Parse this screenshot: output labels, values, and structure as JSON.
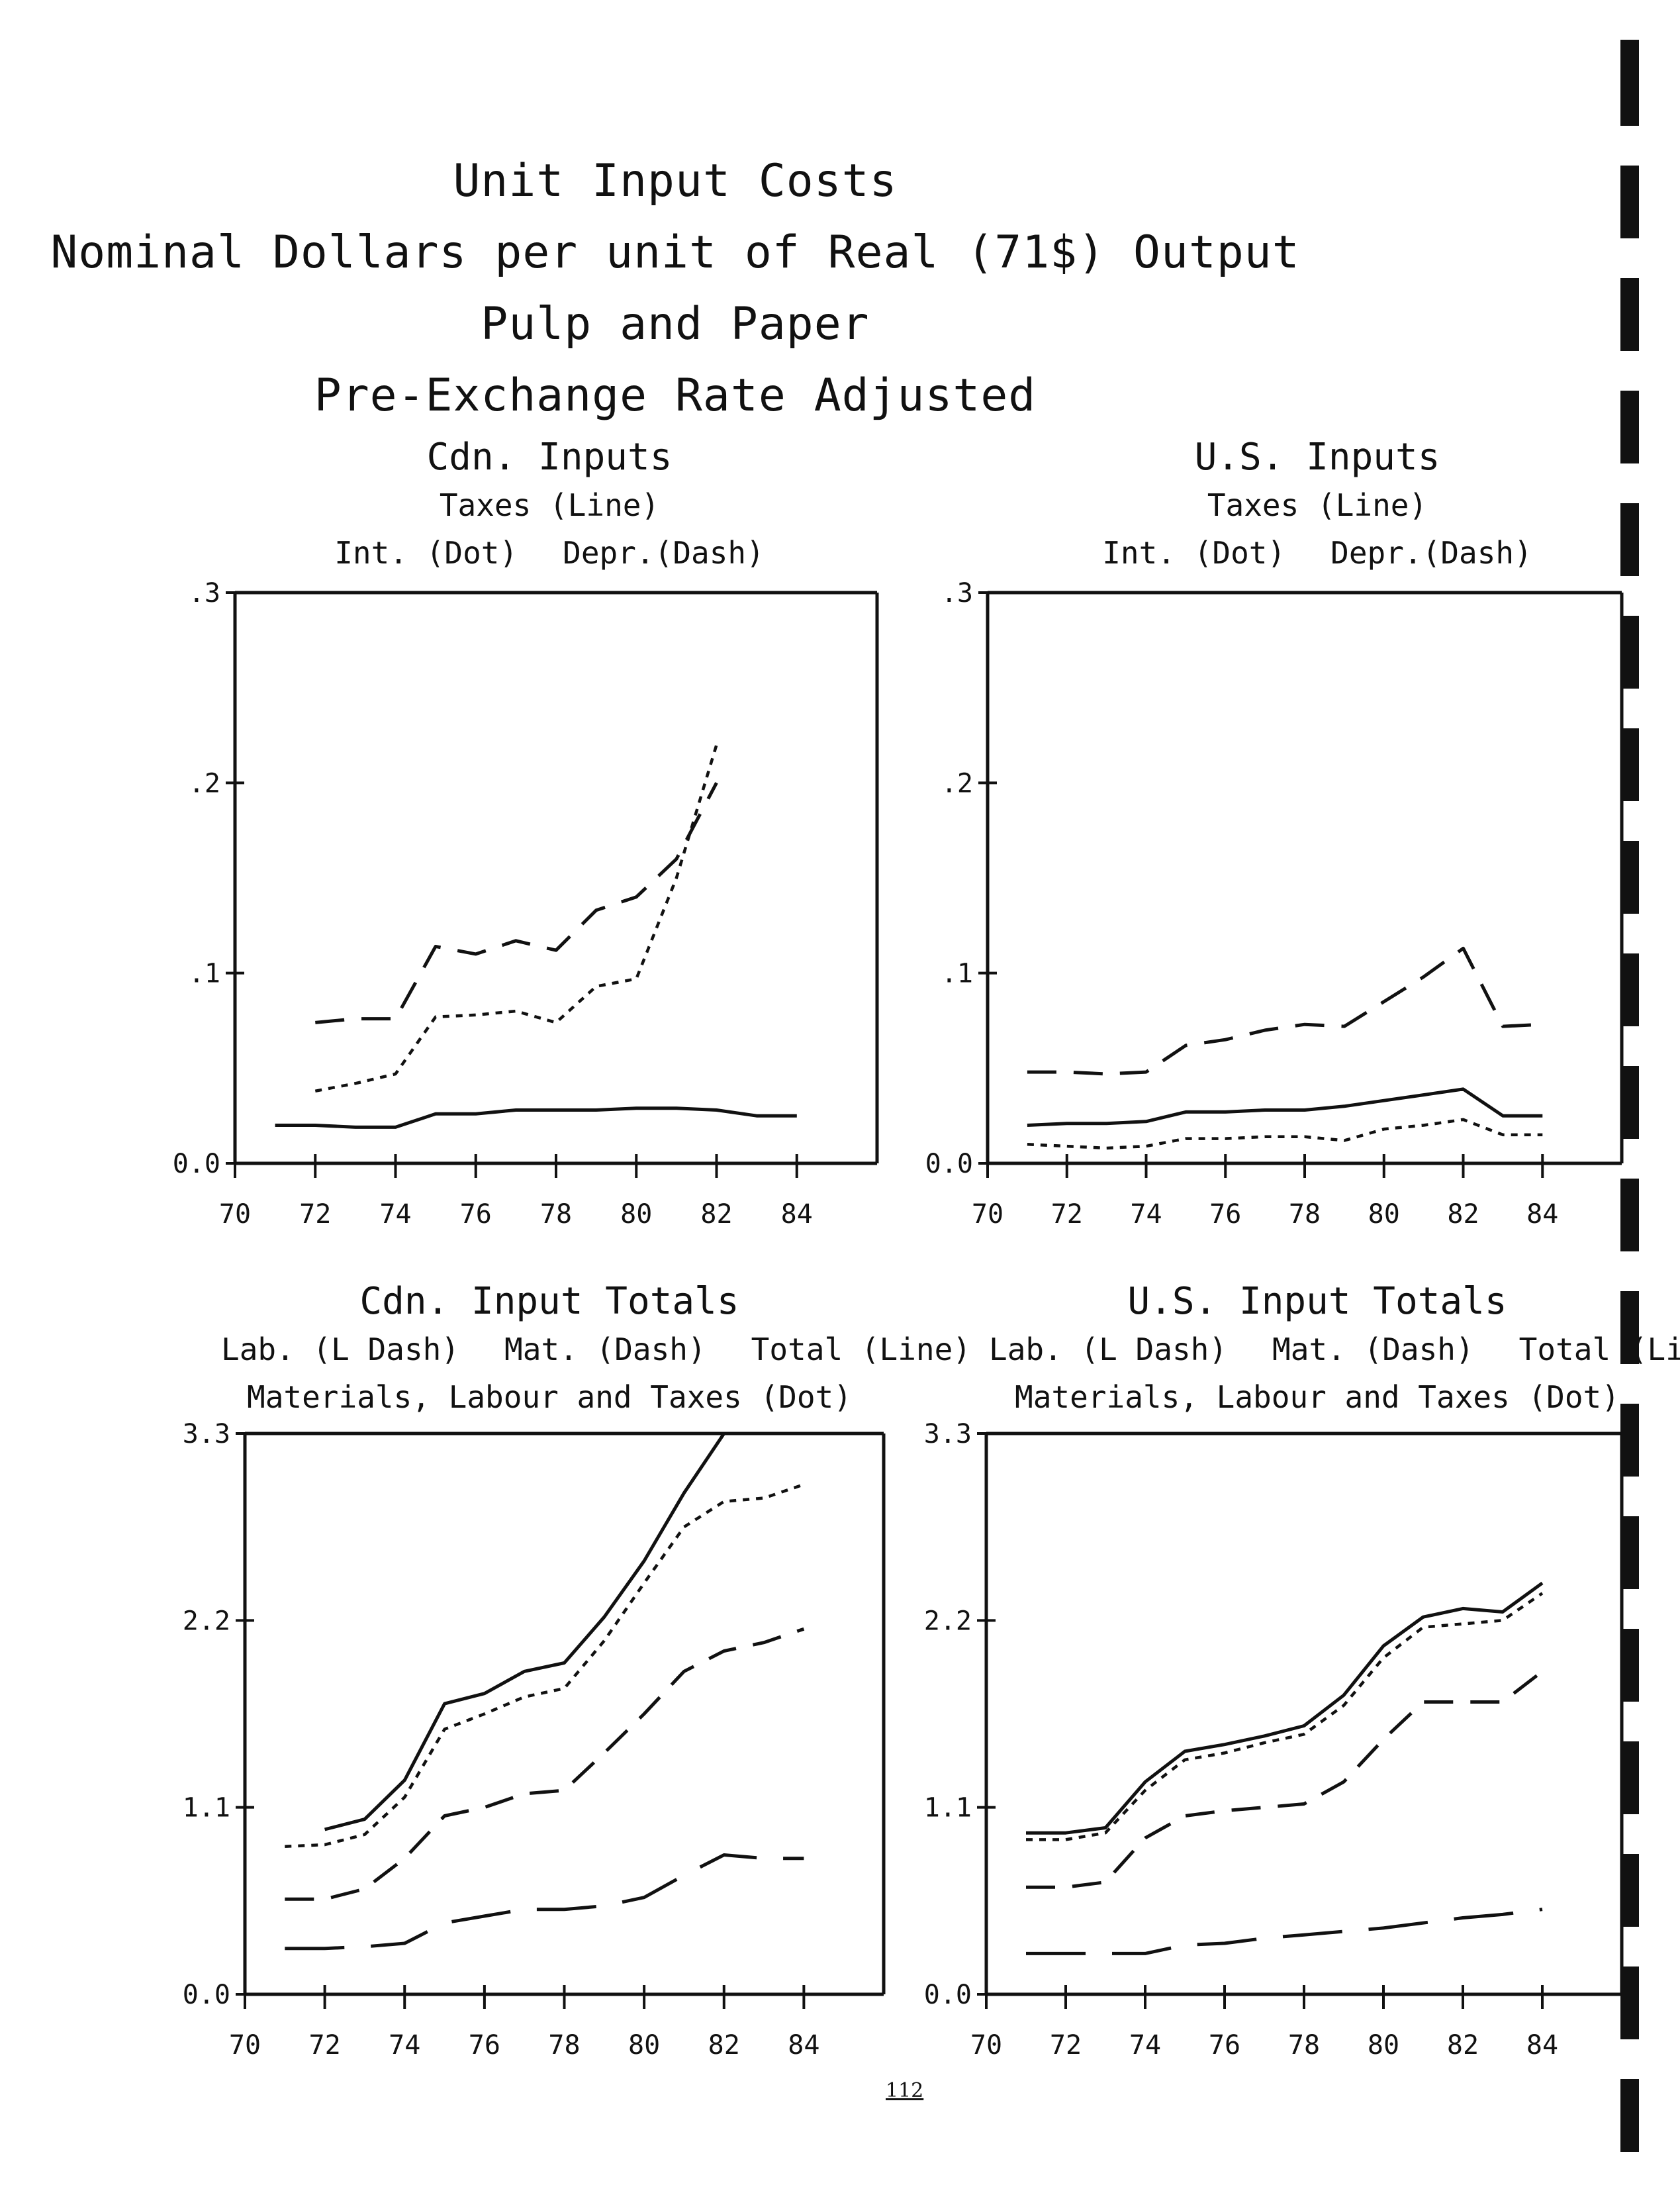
{
  "title_lines": [
    "Unit Input Costs",
    "Nominal Dollars per unit of Real (71$) Output",
    "Pulp and Paper",
    "Pre-Exchange Rate Adjusted"
  ],
  "page_number": "112",
  "colors": {
    "ink": "#111111",
    "paper": "#ffffff"
  },
  "chart_data": [
    {
      "type": "line",
      "heading": "Cdn. Inputs",
      "legend_rows": [
        [
          "Taxes (Line)"
        ],
        [
          "Int. (Dot)",
          "Depr.(Dash)"
        ]
      ],
      "ylim": [
        0,
        0.3
      ],
      "xlim": [
        70,
        86
      ],
      "yticks": [
        0,
        0.1,
        0.2,
        0.3
      ],
      "ytick_labels": [
        "0.0",
        ".1",
        ".2",
        ".3"
      ],
      "xticks": [
        70,
        72,
        74,
        76,
        78,
        80,
        82,
        84
      ],
      "xtick_labels": [
        "70",
        "72",
        "74",
        "76",
        "78",
        "80",
        "82",
        "84"
      ],
      "series": [
        {
          "name": "Taxes",
          "style": "line",
          "x": [
            71,
            72,
            73,
            74,
            75,
            76,
            77,
            78,
            79,
            80,
            81,
            82,
            83,
            84
          ],
          "y": [
            0.02,
            0.02,
            0.019,
            0.019,
            0.026,
            0.026,
            0.028,
            0.028,
            0.028,
            0.029,
            0.029,
            0.028,
            0.025,
            0.025
          ]
        },
        {
          "name": "Int.",
          "style": "dot",
          "x": [
            72,
            73,
            74,
            75,
            76,
            77,
            78,
            79,
            80,
            81,
            82
          ],
          "y": [
            0.038,
            0.042,
            0.047,
            0.077,
            0.078,
            0.08,
            0.074,
            0.093,
            0.097,
            0.15,
            0.22
          ]
        },
        {
          "name": "Depr.",
          "style": "dash",
          "x": [
            72,
            73,
            74,
            75,
            76,
            77,
            78,
            79,
            80,
            81,
            82
          ],
          "y": [
            0.074,
            0.076,
            0.076,
            0.114,
            0.11,
            0.117,
            0.112,
            0.133,
            0.14,
            0.16,
            0.2
          ]
        }
      ]
    },
    {
      "type": "line",
      "heading": "U.S. Inputs",
      "legend_rows": [
        [
          "Taxes (Line)"
        ],
        [
          "Int. (Dot)",
          "Depr.(Dash)"
        ]
      ],
      "ylim": [
        0,
        0.3
      ],
      "xlim": [
        70,
        86
      ],
      "yticks": [
        0,
        0.1,
        0.2,
        0.3
      ],
      "ytick_labels": [
        "0.0",
        ".1",
        ".2",
        ".3"
      ],
      "xticks": [
        70,
        72,
        74,
        76,
        78,
        80,
        82,
        84
      ],
      "xtick_labels": [
        "70",
        "72",
        "74",
        "76",
        "78",
        "80",
        "82",
        "84"
      ],
      "series": [
        {
          "name": "Taxes",
          "style": "line",
          "x": [
            71,
            72,
            73,
            74,
            75,
            76,
            77,
            78,
            79,
            80,
            81,
            82,
            83,
            84
          ],
          "y": [
            0.02,
            0.021,
            0.021,
            0.022,
            0.027,
            0.027,
            0.028,
            0.028,
            0.03,
            0.033,
            0.036,
            0.039,
            0.025,
            0.025
          ]
        },
        {
          "name": "Int.",
          "style": "dot",
          "x": [
            71,
            72,
            73,
            74,
            75,
            76,
            77,
            78,
            79,
            80,
            81,
            82,
            83,
            84
          ],
          "y": [
            0.01,
            0.009,
            0.008,
            0.009,
            0.013,
            0.013,
            0.014,
            0.014,
            0.012,
            0.018,
            0.02,
            0.023,
            0.015,
            0.015
          ]
        },
        {
          "name": "Depr.",
          "style": "dash",
          "x": [
            71,
            72,
            73,
            74,
            75,
            76,
            77,
            78,
            79,
            80,
            81,
            82,
            83,
            84
          ],
          "y": [
            0.048,
            0.048,
            0.047,
            0.048,
            0.062,
            0.065,
            0.07,
            0.073,
            0.072,
            0.085,
            0.098,
            0.113,
            0.072,
            0.073
          ]
        }
      ]
    },
    {
      "type": "line",
      "heading": "Cdn. Input Totals",
      "legend_rows": [
        [
          "Lab. (L Dash)",
          "Mat. (Dash)",
          "Total (Line)"
        ],
        [
          "Materials, Labour and Taxes (Dot)"
        ]
      ],
      "ylim": [
        0,
        3.3
      ],
      "xlim": [
        70,
        86
      ],
      "yticks": [
        0,
        1.1,
        2.2,
        3.3
      ],
      "ytick_labels": [
        "0.0",
        "1.1",
        "2.2",
        "3.3"
      ],
      "xticks": [
        70,
        72,
        74,
        76,
        78,
        80,
        82,
        84
      ],
      "xtick_labels": [
        "70",
        "72",
        "74",
        "76",
        "78",
        "80",
        "82",
        "84"
      ],
      "series": [
        {
          "name": "Lab.",
          "style": "ldash",
          "x": [
            71,
            72,
            73,
            74,
            75,
            76,
            77,
            78,
            79,
            80,
            81,
            82,
            83,
            84
          ],
          "y": [
            0.27,
            0.27,
            0.28,
            0.3,
            0.42,
            0.46,
            0.5,
            0.5,
            0.52,
            0.57,
            0.7,
            0.82,
            0.8,
            0.8
          ]
        },
        {
          "name": "Mat.",
          "style": "dash",
          "x": [
            71,
            72,
            73,
            74,
            75,
            76,
            77,
            78,
            79,
            80,
            81,
            82,
            83,
            84
          ],
          "y": [
            0.56,
            0.56,
            0.62,
            0.8,
            1.05,
            1.1,
            1.18,
            1.2,
            1.42,
            1.65,
            1.9,
            2.02,
            2.07,
            2.15
          ]
        },
        {
          "name": "Total",
          "style": "line",
          "x": [
            72,
            73,
            74,
            75,
            76,
            77,
            78,
            79,
            80,
            81,
            82
          ],
          "y": [
            0.97,
            1.03,
            1.26,
            1.71,
            1.77,
            1.9,
            1.95,
            2.22,
            2.55,
            2.95,
            3.35
          ]
        },
        {
          "name": "Materials, Labour and Taxes",
          "style": "dot",
          "x": [
            71,
            72,
            73,
            74,
            75,
            76,
            77,
            78,
            79,
            80,
            81,
            82,
            83,
            84
          ],
          "y": [
            0.87,
            0.88,
            0.94,
            1.16,
            1.56,
            1.65,
            1.75,
            1.8,
            2.08,
            2.42,
            2.75,
            2.9,
            2.92,
            3.0
          ]
        }
      ]
    },
    {
      "type": "line",
      "heading": "U.S. Input Totals",
      "legend_rows": [
        [
          "Lab. (L Dash)",
          "Mat. (Dash)",
          "Total (Line)"
        ],
        [
          "Materials, Labour and Taxes (Dot)"
        ]
      ],
      "ylim": [
        0,
        3.3
      ],
      "xlim": [
        70,
        86
      ],
      "yticks": [
        0,
        1.1,
        2.2,
        3.3
      ],
      "ytick_labels": [
        "0.0",
        "1.1",
        "2.2",
        "3.3"
      ],
      "xticks": [
        70,
        72,
        74,
        76,
        78,
        80,
        82,
        84
      ],
      "xtick_labels": [
        "70",
        "72",
        "74",
        "76",
        "78",
        "80",
        "82",
        "84"
      ],
      "series": [
        {
          "name": "Lab.",
          "style": "ldash",
          "x": [
            71,
            72,
            73,
            74,
            75,
            76,
            77,
            78,
            79,
            80,
            81,
            82,
            83,
            84
          ],
          "y": [
            0.24,
            0.24,
            0.24,
            0.24,
            0.29,
            0.3,
            0.33,
            0.35,
            0.37,
            0.39,
            0.42,
            0.45,
            0.47,
            0.5
          ]
        },
        {
          "name": "Mat.",
          "style": "dash",
          "x": [
            71,
            72,
            73,
            74,
            75,
            76,
            77,
            78,
            79,
            80,
            81,
            82,
            83,
            84
          ],
          "y": [
            0.63,
            0.63,
            0.66,
            0.92,
            1.05,
            1.08,
            1.1,
            1.12,
            1.25,
            1.5,
            1.72,
            1.72,
            1.72,
            1.9
          ]
        },
        {
          "name": "Total",
          "style": "line",
          "x": [
            71,
            72,
            73,
            74,
            75,
            76,
            77,
            78,
            79,
            80,
            81,
            82,
            83,
            84
          ],
          "y": [
            0.95,
            0.95,
            0.98,
            1.25,
            1.43,
            1.47,
            1.52,
            1.58,
            1.76,
            2.05,
            2.22,
            2.27,
            2.25,
            2.42
          ]
        },
        {
          "name": "Materials, Labour and Taxes",
          "style": "dot",
          "x": [
            71,
            72,
            73,
            74,
            75,
            76,
            77,
            78,
            79,
            80,
            81,
            82,
            83,
            84
          ],
          "y": [
            0.91,
            0.91,
            0.95,
            1.2,
            1.38,
            1.42,
            1.48,
            1.53,
            1.7,
            1.98,
            2.16,
            2.18,
            2.2,
            2.36
          ]
        }
      ]
    }
  ]
}
